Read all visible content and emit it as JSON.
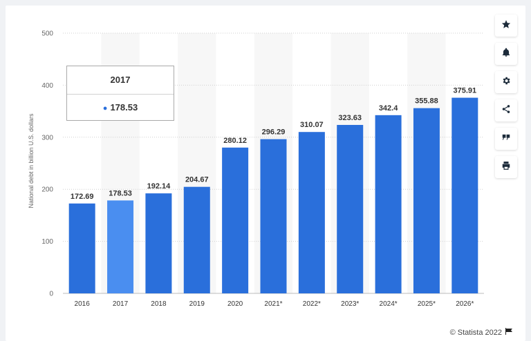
{
  "chart_data": {
    "type": "bar",
    "categories": [
      "2016",
      "2017",
      "2018",
      "2019",
      "2020",
      "2021*",
      "2022*",
      "2023*",
      "2024*",
      "2025*",
      "2026*"
    ],
    "values": [
      172.69,
      178.53,
      192.14,
      204.67,
      280.12,
      296.29,
      310.07,
      323.63,
      342.4,
      355.88,
      375.91
    ],
    "value_labels": [
      "172.69",
      "178.53",
      "192.14",
      "204.67",
      "280.12",
      "296.29",
      "310.07",
      "323.63",
      "342.4",
      "355.88",
      "375.91"
    ],
    "ylabel": "National debt in billion U.S. dollars",
    "xlabel": "",
    "ylim": [
      0,
      500
    ],
    "yticks": [
      0,
      100,
      200,
      300,
      400,
      500
    ],
    "highlighted_index": 1,
    "grid": true,
    "colors": {
      "bar": "#2a6fdb",
      "highlight": "#4a8ef0",
      "band": "#f7f7f7"
    }
  },
  "tooltip": {
    "title": "2017",
    "value": "178.53"
  },
  "toolbar": {
    "items": [
      {
        "name": "star",
        "icon": "star-icon"
      },
      {
        "name": "bell",
        "icon": "bell-icon"
      },
      {
        "name": "settings",
        "icon": "gear-icon"
      },
      {
        "name": "share",
        "icon": "share-icon"
      },
      {
        "name": "cite",
        "icon": "quote-icon"
      },
      {
        "name": "print",
        "icon": "print-icon"
      }
    ]
  },
  "credit": {
    "text": "© Statista 2022",
    "icon": "flag-icon"
  }
}
